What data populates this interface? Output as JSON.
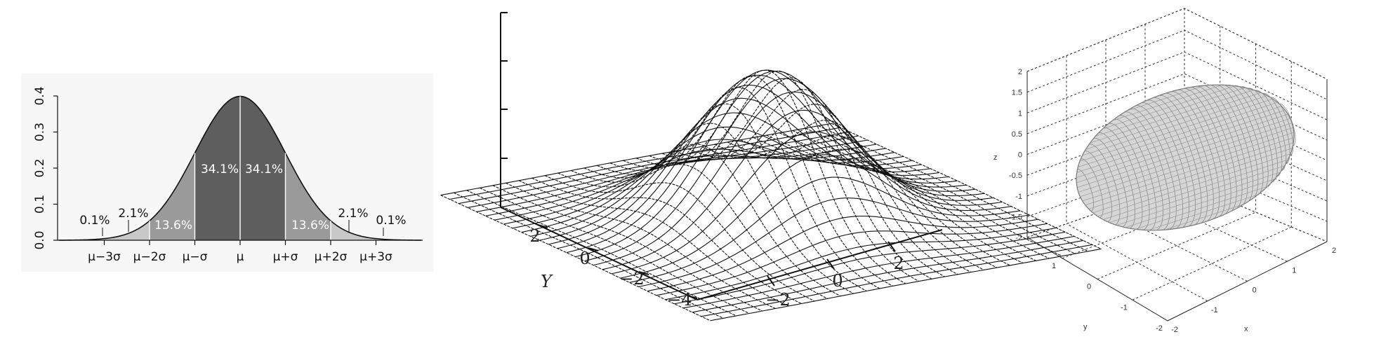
{
  "chart_data": [
    {
      "type": "area",
      "distribution": "normal",
      "x_tick_labels": [
        "μ−3σ",
        "μ−2σ",
        "μ−σ",
        "μ",
        "μ+σ",
        "μ+2σ",
        "μ+3σ"
      ],
      "y_ticks": [
        "0.0",
        "0.1",
        "0.2",
        "0.3",
        "0.4"
      ],
      "ylim": [
        0,
        0.4
      ],
      "xlim_sigma": [
        -4,
        4
      ],
      "bands": [
        {
          "from": -4,
          "to": -3,
          "label": "0.1%",
          "color": "#f7f7f7"
        },
        {
          "from": -3,
          "to": -2,
          "label": "2.1%",
          "color": "#c8c8c8"
        },
        {
          "from": -2,
          "to": -1,
          "label": "13.6%",
          "color": "#9a9a9a"
        },
        {
          "from": -1,
          "to": 0,
          "label": "34.1%",
          "color": "#5e5e5e"
        },
        {
          "from": 0,
          "to": 1,
          "label": "34.1%",
          "color": "#5e5e5e"
        },
        {
          "from": 1,
          "to": 2,
          "label": "13.6%",
          "color": "#9a9a9a"
        },
        {
          "from": 2,
          "to": 3,
          "label": "2.1%",
          "color": "#c8c8c8"
        },
        {
          "from": 3,
          "to": 4,
          "label": "0.1%",
          "color": "#f7f7f7"
        }
      ]
    },
    {
      "type": "surface",
      "function": "gaussian",
      "x_ticks": [
        "−2",
        "0",
        "2"
      ],
      "y_ticks": [
        "2",
        "0",
        "−2",
        "−4"
      ],
      "ylabel": "Y"
    },
    {
      "type": "surface",
      "shape": "ellipsoid",
      "x_ticks": [
        "-2",
        "-1",
        "0",
        "1",
        "2"
      ],
      "y_ticks": [
        "-2",
        "-1",
        "0",
        "1"
      ],
      "z_ticks": [
        "2",
        "1.5",
        "1",
        "0.5",
        "0",
        "-0.5",
        "-1",
        "-1.5",
        "-2"
      ],
      "xlabel": "x",
      "ylabel": "y",
      "zlabel": "z",
      "grid": true
    }
  ]
}
